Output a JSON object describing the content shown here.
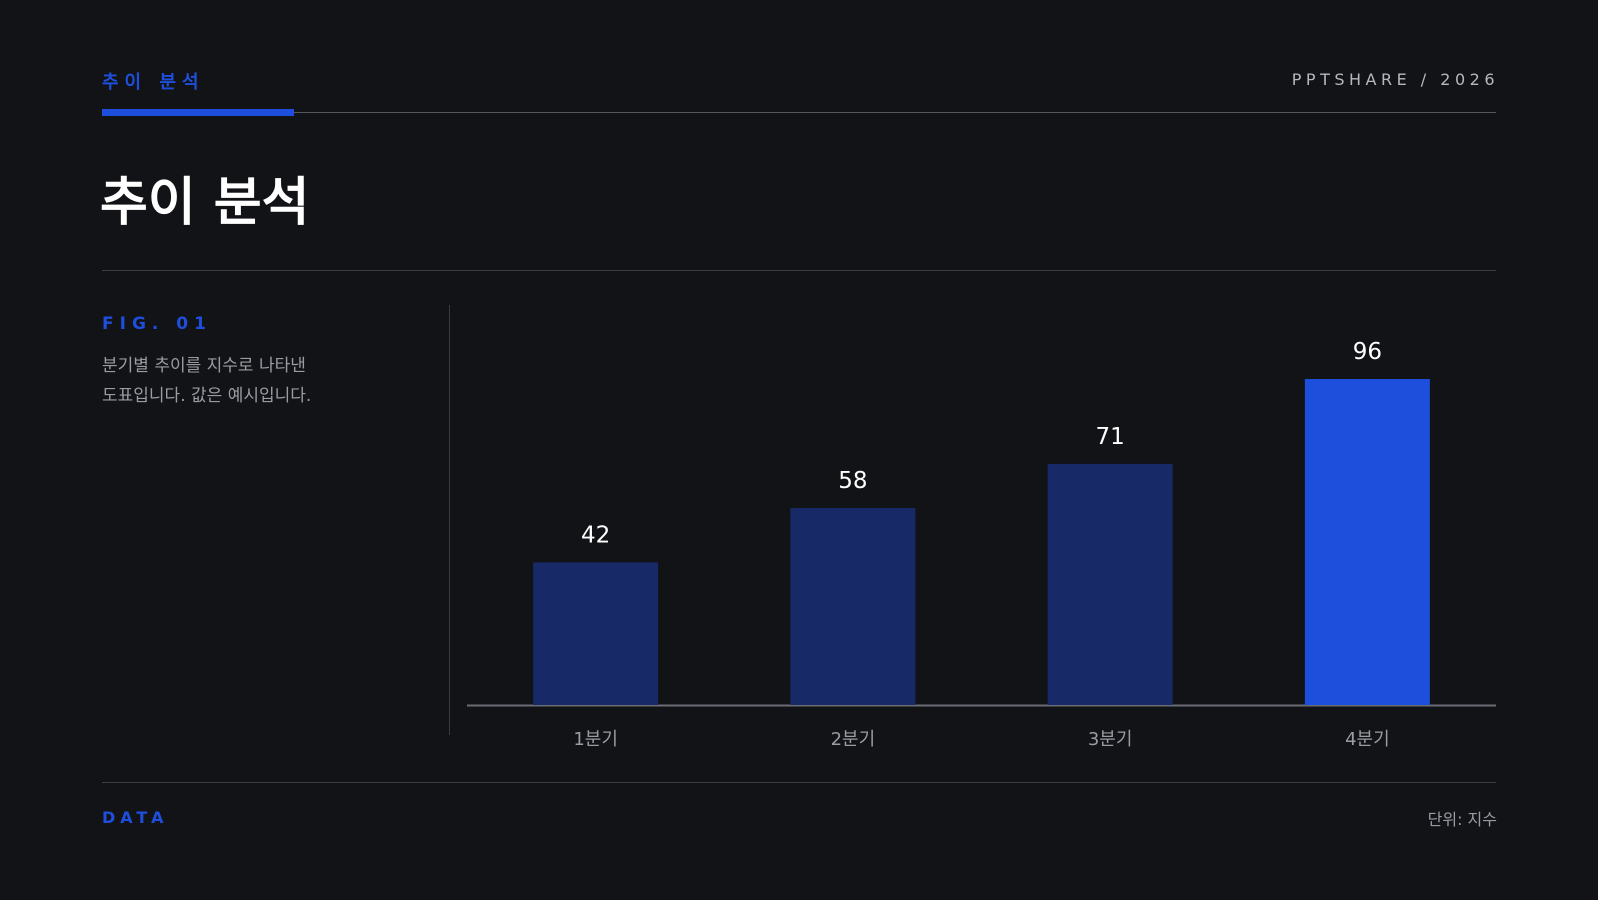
{
  "header": {
    "kicker": "추이 분석",
    "brand": "PPTSHARE / 2026"
  },
  "title": "추이 분석",
  "figure": {
    "label": "FIG. 01",
    "description_lines": [
      "분기별 추이를 지수로 나타낸",
      "도표입니다. 값은 예시입니다."
    ]
  },
  "footer": {
    "left": "DATA",
    "right": "단위: 지수"
  },
  "colors": {
    "accent": "#1e4fdc",
    "bar_default": "#172966",
    "background": "#121317"
  },
  "chart_data": {
    "type": "bar",
    "categories": [
      "1분기",
      "2분기",
      "3분기",
      "4분기"
    ],
    "values": [
      42,
      58,
      71,
      96
    ],
    "highlight_index": 3,
    "ylim": [
      0,
      100
    ],
    "title": "",
    "xlabel": "",
    "ylabel": "",
    "grid": false,
    "data_labels": true
  }
}
